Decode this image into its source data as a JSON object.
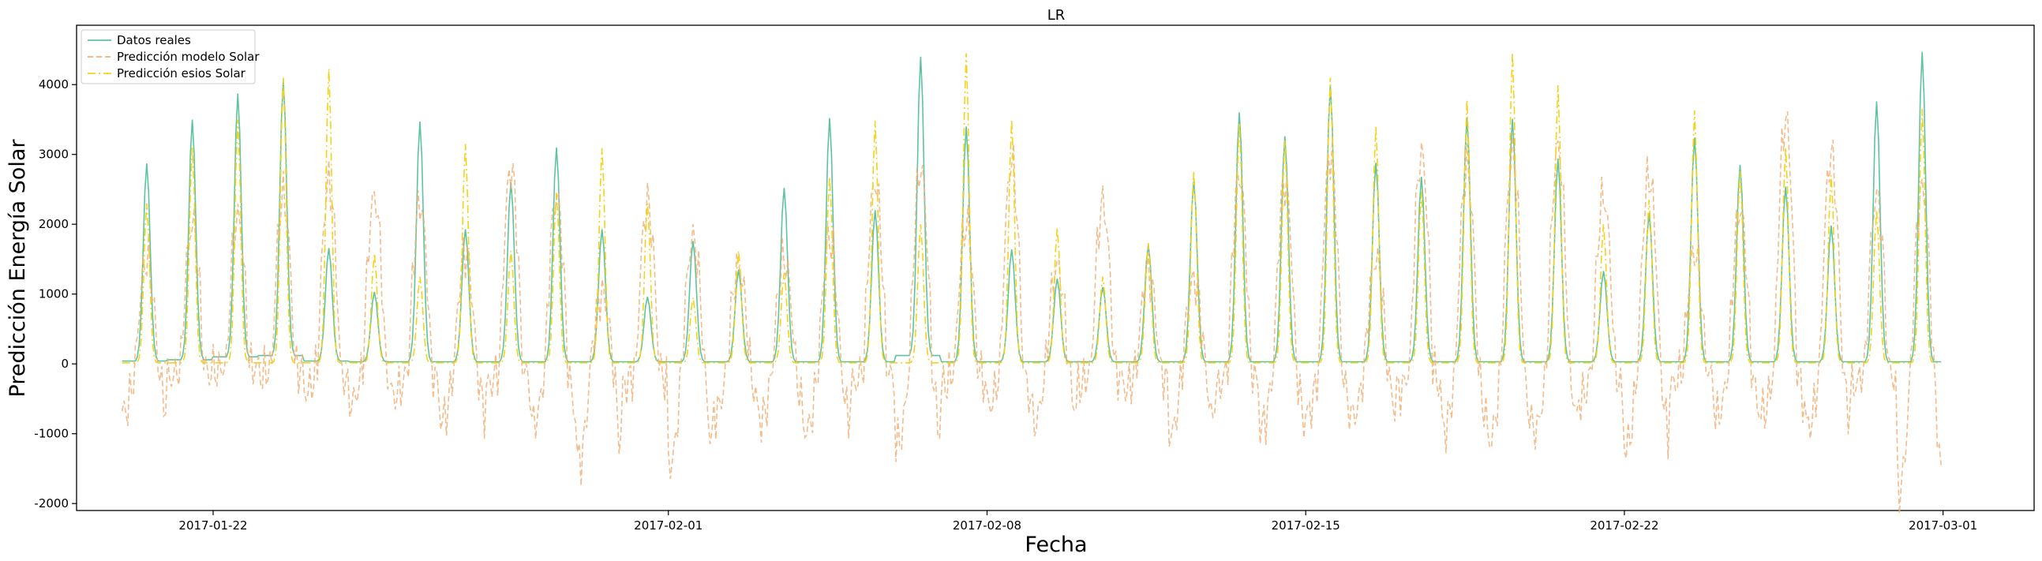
{
  "chart_data": {
    "type": "line",
    "title": "LR",
    "xlabel": "Fecha",
    "ylabel": "Predicción Energía Solar",
    "x_start": "2017-01-20",
    "x_end": "2017-03-02",
    "xlim": [
      "2017-01-19",
      "2017-03-03"
    ],
    "ylim": [
      -2100,
      4850
    ],
    "x_ticks": [
      "2017-01-22",
      "2017-02-01",
      "2017-02-08",
      "2017-02-15",
      "2017-02-22",
      "2017-03-01"
    ],
    "y_ticks": [
      -2000,
      -1000,
      0,
      1000,
      2000,
      3000,
      4000
    ],
    "legend_position": "upper-left",
    "series": [
      {
        "name": "Datos reales",
        "color": "#5ec4a0",
        "style": "solid",
        "daily_peaks": [
          2870,
          3500,
          3870,
          4070,
          1660,
          1030,
          3470,
          1930,
          2600,
          3100,
          1930,
          960,
          1760,
          1350,
          2520,
          3520,
          2200,
          4400,
          3400,
          1640,
          1220,
          1100,
          1700,
          2620,
          3600,
          3260,
          3990,
          2880,
          2680,
          3530,
          3510,
          2940,
          1330,
          2160,
          3240,
          2850,
          2540,
          1980,
          3760,
          4470
        ],
        "night_baseline": [
          40,
          60,
          100,
          120,
          40,
          30,
          30,
          30,
          30,
          30,
          30,
          30,
          30,
          30,
          30,
          30,
          30,
          120,
          30,
          30,
          30,
          30,
          30,
          30,
          30,
          30,
          30,
          30,
          30,
          30,
          30,
          30,
          30,
          30,
          30,
          30,
          30,
          30,
          30,
          30
        ]
      },
      {
        "name": "Predicción modelo Solar",
        "color": "#f0b078",
        "style": "dashed",
        "daily_peaks": [
          1500,
          2000,
          2100,
          2400,
          2600,
          2400,
          2300,
          1600,
          2800,
          2400,
          1000,
          2300,
          1800,
          1400,
          1500,
          1800,
          2600,
          2800,
          2000,
          2900,
          1400,
          2300,
          1300,
          1200,
          2700,
          2600,
          3000,
          1500,
          3000,
          2800,
          3000,
          3100,
          2400,
          2700,
          1600,
          2200,
          3500,
          3000,
          2400,
          2500
        ],
        "daily_troughs": [
          -700,
          -200,
          -100,
          -150,
          -400,
          -550,
          -400,
          -800,
          -300,
          -850,
          -1400,
          -300,
          -1450,
          -700,
          -800,
          -950,
          -300,
          -1150,
          -300,
          -600,
          -850,
          -300,
          -350,
          -1000,
          -350,
          -900,
          -700,
          -750,
          -400,
          -950,
          -1100,
          -950,
          -500,
          -1200,
          -300,
          -750,
          -700,
          -900,
          -300,
          -1800
        ]
      },
      {
        "name": "Predicción esios Solar",
        "color": "#f5d21a",
        "style": "dashdot",
        "daily_peaks": [
          2300,
          3100,
          3500,
          4100,
          4230,
          1580,
          1250,
          3150,
          1620,
          2450,
          3090,
          2300,
          950,
          1620,
          1300,
          2680,
          3480,
          2000,
          4450,
          3500,
          1950,
          1250,
          1730,
          2760,
          3450,
          3200,
          4100,
          3400,
          2470,
          3780,
          4460,
          3990,
          2000,
          2350,
          3630,
          2760,
          3100,
          2700,
          2200,
          3650
        ]
      }
    ]
  }
}
